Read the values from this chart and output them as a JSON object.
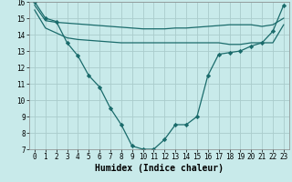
{
  "background_color": "#c8eaea",
  "grid_color": "#aacccc",
  "line_color": "#1a6b6b",
  "line_width": 0.9,
  "marker": "D",
  "marker_size": 2.2,
  "xlabel": "Humidex (Indice chaleur)",
  "xlabel_fontsize": 7,
  "tick_fontsize": 5.5,
  "xlim": [
    -0.5,
    23.5
  ],
  "ylim": [
    7,
    16
  ],
  "yticks": [
    7,
    8,
    9,
    10,
    11,
    12,
    13,
    14,
    15,
    16
  ],
  "xticks": [
    0,
    1,
    2,
    3,
    4,
    5,
    6,
    7,
    8,
    9,
    10,
    11,
    12,
    13,
    14,
    15,
    16,
    17,
    18,
    19,
    20,
    21,
    22,
    23
  ],
  "series": [
    {
      "x": [
        0,
        1,
        2,
        3,
        4,
        5,
        6,
        7,
        8,
        9,
        10,
        11,
        12,
        13,
        14,
        15,
        16,
        17,
        18,
        19,
        20,
        21,
        22,
        23
      ],
      "y": [
        16.0,
        15.0,
        14.8,
        13.5,
        12.7,
        11.5,
        10.8,
        9.5,
        8.5,
        7.2,
        7.0,
        7.0,
        7.6,
        8.5,
        8.5,
        9.0,
        11.5,
        12.8,
        12.9,
        13.0,
        13.3,
        13.5,
        14.2,
        15.8
      ],
      "has_markers": true
    },
    {
      "x": [
        0,
        1,
        2,
        3,
        4,
        5,
        6,
        7,
        8,
        9,
        10,
        11,
        12,
        13,
        14,
        15,
        16,
        17,
        18,
        19,
        20,
        21,
        22,
        23
      ],
      "y": [
        15.8,
        14.85,
        14.75,
        14.7,
        14.65,
        14.6,
        14.55,
        14.5,
        14.45,
        14.4,
        14.35,
        14.35,
        14.35,
        14.4,
        14.4,
        14.45,
        14.5,
        14.55,
        14.6,
        14.6,
        14.6,
        14.5,
        14.6,
        15.0
      ],
      "has_markers": false
    },
    {
      "x": [
        0,
        1,
        2,
        3,
        4,
        5,
        6,
        7,
        8,
        9,
        10,
        11,
        12,
        13,
        14,
        15,
        16,
        17,
        18,
        19,
        20,
        21,
        22,
        23
      ],
      "y": [
        15.5,
        14.4,
        14.1,
        13.8,
        13.7,
        13.65,
        13.6,
        13.55,
        13.5,
        13.5,
        13.5,
        13.5,
        13.5,
        13.5,
        13.5,
        13.5,
        13.5,
        13.5,
        13.4,
        13.4,
        13.5,
        13.5,
        13.5,
        14.6
      ],
      "has_markers": false
    }
  ]
}
